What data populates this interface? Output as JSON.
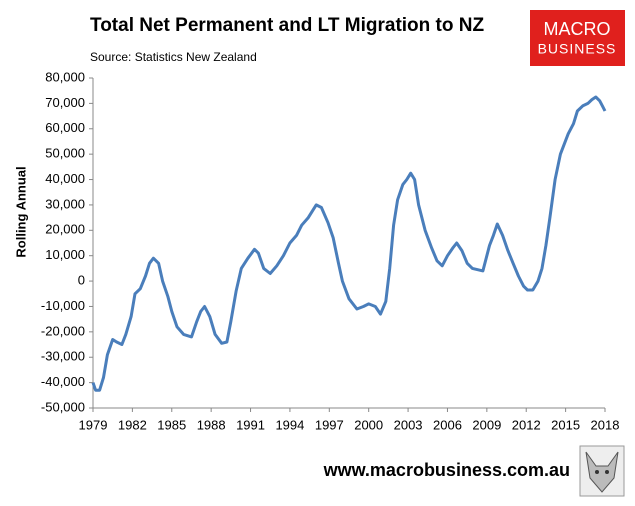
{
  "chart_data": {
    "type": "line",
    "title": "Total Net Permanent and LT Migration to NZ",
    "subtitle": "Source: Statistics New Zealand",
    "logo": [
      "MACRO",
      "BUSINESS"
    ],
    "footer": "www.macrobusiness.com.au",
    "y_label": "Rolling Annual",
    "grid": false,
    "xlim": [
      1979,
      2018
    ],
    "xticks": [
      1979,
      1982,
      1985,
      1988,
      1991,
      1994,
      1997,
      2000,
      2003,
      2006,
      2009,
      2012,
      2015,
      2018
    ],
    "ylim": [
      -50000,
      80000
    ],
    "yticks": [
      {
        "value": -50000,
        "label": "-50,000"
      },
      {
        "value": -40000,
        "label": "-40,000"
      },
      {
        "value": -30000,
        "label": "-30,000"
      },
      {
        "value": -20000,
        "label": "-20,000"
      },
      {
        "value": -10000,
        "label": "-10,000"
      },
      0,
      {
        "value": 10000,
        "label": "10,000"
      },
      {
        "value": 20000,
        "label": "20,000"
      },
      {
        "value": 30000,
        "label": "30,000"
      },
      {
        "value": 40000,
        "label": "40,000"
      },
      {
        "value": 50000,
        "label": "50,000"
      },
      {
        "value": 60000,
        "label": "60,000"
      },
      {
        "value": 70000,
        "label": "70,000"
      },
      {
        "value": 80000,
        "label": "80,000"
      }
    ],
    "x": [
      1979.0,
      1979.2,
      1979.5,
      1979.8,
      1980.1,
      1980.5,
      1980.8,
      1981.2,
      1981.5,
      1981.9,
      1982.2,
      1982.6,
      1983.0,
      1983.3,
      1983.6,
      1984.0,
      1984.3,
      1984.7,
      1985.0,
      1985.4,
      1985.9,
      1986.5,
      1986.9,
      1987.2,
      1987.5,
      1987.9,
      1988.3,
      1988.8,
      1989.2,
      1989.5,
      1989.9,
      1990.3,
      1990.8,
      1991.3,
      1991.6,
      1992.0,
      1992.5,
      1993.0,
      1993.5,
      1994.0,
      1994.5,
      1994.9,
      1995.4,
      1996.0,
      1996.4,
      1996.9,
      1997.3,
      1997.7,
      1998.0,
      1998.5,
      1999.1,
      1999.6,
      2000.0,
      2000.5,
      2000.9,
      2001.3,
      2001.6,
      2001.9,
      2002.2,
      2002.6,
      2002.9,
      2003.2,
      2003.5,
      2003.8,
      2004.3,
      2004.8,
      2005.2,
      2005.6,
      2006.0,
      2006.4,
      2006.7,
      2007.1,
      2007.5,
      2007.9,
      2008.3,
      2008.7,
      2009.2,
      2009.5,
      2009.8,
      2010.2,
      2010.6,
      2011.0,
      2011.4,
      2011.8,
      2012.1,
      2012.5,
      2012.9,
      2013.2,
      2013.5,
      2013.8,
      2014.2,
      2014.6,
      2015.2,
      2015.6,
      2015.9,
      2016.3,
      2016.7,
      2017.0,
      2017.3,
      2017.6,
      2017.8,
      2018.0
    ],
    "series": [
      {
        "name": "Rolling Annual",
        "color": "#4a7ebb",
        "values": [
          -40000,
          -43000,
          -43000,
          -38000,
          -29000,
          -23000,
          -24000,
          -25000,
          -21000,
          -14000,
          -5000,
          -3000,
          2000,
          7000,
          9000,
          7000,
          0,
          -6000,
          -12000,
          -18000,
          -21000,
          -22000,
          -16000,
          -12000,
          -10000,
          -14000,
          -21000,
          -24500,
          -24000,
          -16000,
          -4000,
          5000,
          9000,
          12500,
          11000,
          5000,
          3000,
          6000,
          10000,
          15000,
          18000,
          22000,
          25000,
          30000,
          29000,
          23000,
          17000,
          7000,
          0,
          -7000,
          -11000,
          -10000,
          -9000,
          -10000,
          -13000,
          -8000,
          5000,
          22000,
          32000,
          38000,
          40000,
          42500,
          40000,
          30000,
          20000,
          13000,
          8000,
          6000,
          10000,
          13000,
          15000,
          12000,
          7000,
          5000,
          4500,
          4000,
          14000,
          18000,
          22500,
          18000,
          12000,
          7000,
          2000,
          -2000,
          -3500,
          -3500,
          0,
          5000,
          14000,
          25000,
          40000,
          50000,
          58000,
          62000,
          67000,
          69000,
          70000,
          71500,
          72500,
          71000,
          69000,
          67000
        ]
      }
    ]
  }
}
